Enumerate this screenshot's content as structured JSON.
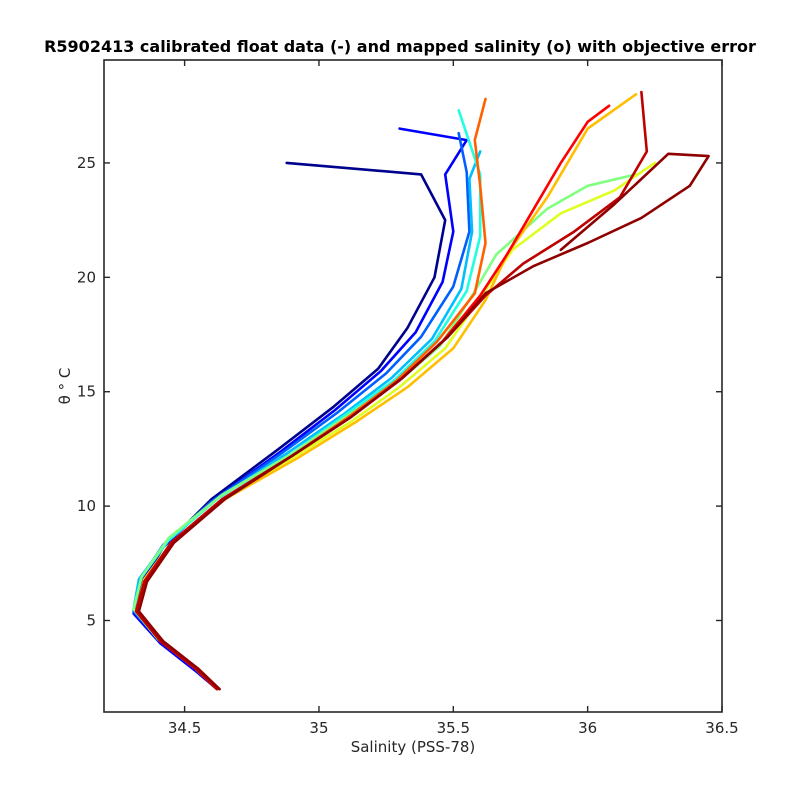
{
  "chart_data": {
    "type": "line",
    "title": "R5902413 calibrated float data (-) and mapped salinity (o) with objective error",
    "xlabel": "Salinity (PSS-78)",
    "ylabel": "θ ° C",
    "xlim": [
      34.2,
      36.5
    ],
    "ylim": [
      1.0,
      29.5
    ],
    "xticks": [
      34.5,
      35,
      35.5,
      36,
      36.5
    ],
    "yticks": [
      5,
      10,
      15,
      20,
      25
    ],
    "grid": false,
    "legend": "none",
    "colormap": "jet",
    "profile_colors": [
      "#00008f",
      "#0000ff",
      "#0060ff",
      "#00bfff",
      "#20ffdf",
      "#80ff80",
      "#dfff20",
      "#ffbf00",
      "#ff6000",
      "#ff0000",
      "#bf0000",
      "#8f0000"
    ],
    "series": [
      {
        "color": "#00008f",
        "values": [
          [
            34.63,
            2.0
          ],
          [
            34.55,
            2.8
          ],
          [
            34.42,
            4.0
          ],
          [
            34.32,
            5.3
          ],
          [
            34.34,
            6.6
          ],
          [
            34.42,
            8.2
          ],
          [
            34.6,
            10.3
          ],
          [
            34.85,
            12.5
          ],
          [
            35.05,
            14.3
          ],
          [
            35.22,
            16.0
          ],
          [
            35.33,
            17.8
          ],
          [
            35.43,
            20.0
          ],
          [
            35.47,
            22.5
          ],
          [
            35.38,
            24.5
          ],
          [
            34.88,
            25.0
          ]
        ]
      },
      {
        "color": "#0000ff",
        "values": [
          [
            34.62,
            2.0
          ],
          [
            34.54,
            2.8
          ],
          [
            34.41,
            4.0
          ],
          [
            34.31,
            5.3
          ],
          [
            34.33,
            6.6
          ],
          [
            34.42,
            8.2
          ],
          [
            34.6,
            10.2
          ],
          [
            34.86,
            12.4
          ],
          [
            35.06,
            14.2
          ],
          [
            35.23,
            15.9
          ],
          [
            35.36,
            17.6
          ],
          [
            35.46,
            19.8
          ],
          [
            35.5,
            22.0
          ],
          [
            35.47,
            24.5
          ],
          [
            35.55,
            26.0
          ],
          [
            35.3,
            26.5
          ]
        ]
      },
      {
        "color": "#0060ff",
        "values": [
          [
            34.62,
            2.0
          ],
          [
            34.54,
            2.9
          ],
          [
            34.41,
            4.1
          ],
          [
            34.31,
            5.4
          ],
          [
            34.33,
            6.7
          ],
          [
            34.42,
            8.3
          ],
          [
            34.6,
            10.2
          ],
          [
            34.86,
            12.3
          ],
          [
            35.07,
            14.1
          ],
          [
            35.25,
            15.8
          ],
          [
            35.38,
            17.4
          ],
          [
            35.5,
            19.6
          ],
          [
            35.56,
            22.0
          ],
          [
            35.55,
            24.6
          ],
          [
            35.52,
            26.3
          ]
        ]
      },
      {
        "color": "#00bfff",
        "values": [
          [
            34.62,
            2.0
          ],
          [
            34.54,
            2.9
          ],
          [
            34.4,
            4.2
          ],
          [
            34.31,
            5.5
          ],
          [
            34.33,
            6.8
          ],
          [
            34.43,
            8.4
          ],
          [
            34.62,
            10.3
          ],
          [
            34.88,
            12.3
          ],
          [
            35.09,
            14.0
          ],
          [
            35.27,
            15.6
          ],
          [
            35.42,
            17.3
          ],
          [
            35.53,
            19.5
          ],
          [
            35.57,
            22.0
          ],
          [
            35.56,
            24.3
          ],
          [
            35.6,
            25.5
          ]
        ]
      },
      {
        "color": "#20ffdf",
        "values": [
          [
            34.62,
            2.0
          ],
          [
            34.54,
            2.9
          ],
          [
            34.4,
            4.2
          ],
          [
            34.31,
            5.5
          ],
          [
            34.34,
            6.9
          ],
          [
            34.44,
            8.5
          ],
          [
            34.63,
            10.4
          ],
          [
            34.9,
            12.3
          ],
          [
            35.1,
            14.0
          ],
          [
            35.28,
            15.5
          ],
          [
            35.43,
            17.2
          ],
          [
            35.55,
            19.4
          ],
          [
            35.6,
            21.8
          ],
          [
            35.6,
            24.5
          ],
          [
            35.52,
            27.3
          ]
        ]
      },
      {
        "color": "#80ff80",
        "values": [
          [
            34.62,
            2.0
          ],
          [
            34.54,
            2.9
          ],
          [
            34.4,
            4.2
          ],
          [
            34.31,
            5.5
          ],
          [
            34.34,
            6.9
          ],
          [
            34.44,
            8.6
          ],
          [
            34.64,
            10.5
          ],
          [
            34.9,
            12.3
          ],
          [
            35.1,
            13.9
          ],
          [
            35.29,
            15.4
          ],
          [
            35.45,
            17.0
          ],
          [
            35.57,
            19.2
          ],
          [
            35.66,
            21.0
          ],
          [
            35.85,
            23.0
          ],
          [
            36.0,
            24.0
          ],
          [
            36.18,
            24.5
          ]
        ]
      },
      {
        "color": "#dfff20",
        "values": [
          [
            34.62,
            2.0
          ],
          [
            34.54,
            2.9
          ],
          [
            34.41,
            4.1
          ],
          [
            34.32,
            5.4
          ],
          [
            34.35,
            6.8
          ],
          [
            34.45,
            8.4
          ],
          [
            34.63,
            10.2
          ],
          [
            34.9,
            12.1
          ],
          [
            35.12,
            13.7
          ],
          [
            35.3,
            15.2
          ],
          [
            35.47,
            16.9
          ],
          [
            35.6,
            19.1
          ],
          [
            35.72,
            21.2
          ],
          [
            35.9,
            22.8
          ],
          [
            36.1,
            23.8
          ],
          [
            36.25,
            25.0
          ]
        ]
      },
      {
        "color": "#ffbf00",
        "values": [
          [
            34.62,
            2.0
          ],
          [
            34.54,
            2.9
          ],
          [
            34.41,
            4.1
          ],
          [
            34.32,
            5.4
          ],
          [
            34.35,
            6.8
          ],
          [
            34.46,
            8.5
          ],
          [
            34.65,
            10.3
          ],
          [
            34.92,
            12.1
          ],
          [
            35.14,
            13.7
          ],
          [
            35.33,
            15.2
          ],
          [
            35.5,
            16.9
          ],
          [
            35.62,
            19.0
          ],
          [
            35.7,
            21.0
          ],
          [
            35.85,
            23.5
          ],
          [
            36.0,
            26.5
          ],
          [
            36.18,
            28.0
          ]
        ]
      },
      {
        "color": "#ff6000",
        "values": [
          [
            34.62,
            2.0
          ],
          [
            34.54,
            2.9
          ],
          [
            34.41,
            4.1
          ],
          [
            34.32,
            5.4
          ],
          [
            34.35,
            6.7
          ],
          [
            34.45,
            8.4
          ],
          [
            34.64,
            10.3
          ],
          [
            34.9,
            12.2
          ],
          [
            35.11,
            13.9
          ],
          [
            35.29,
            15.5
          ],
          [
            35.44,
            17.2
          ],
          [
            35.58,
            19.3
          ],
          [
            35.62,
            21.5
          ],
          [
            35.6,
            24.0
          ],
          [
            35.58,
            26.0
          ],
          [
            35.62,
            27.8
          ]
        ]
      },
      {
        "color": "#ff0000",
        "values": [
          [
            34.62,
            2.0
          ],
          [
            34.54,
            2.9
          ],
          [
            34.41,
            4.1
          ],
          [
            34.32,
            5.4
          ],
          [
            34.35,
            6.7
          ],
          [
            34.45,
            8.4
          ],
          [
            34.64,
            10.3
          ],
          [
            34.9,
            12.2
          ],
          [
            35.12,
            13.9
          ],
          [
            35.3,
            15.5
          ],
          [
            35.46,
            17.2
          ],
          [
            35.6,
            19.2
          ],
          [
            35.7,
            21.0
          ],
          [
            35.8,
            23.0
          ],
          [
            35.9,
            25.0
          ],
          [
            36.0,
            26.8
          ],
          [
            36.08,
            27.5
          ]
        ]
      },
      {
        "color": "#bf0000",
        "values": [
          [
            34.62,
            2.0
          ],
          [
            34.54,
            2.9
          ],
          [
            34.41,
            4.1
          ],
          [
            34.32,
            5.4
          ],
          [
            34.35,
            6.7
          ],
          [
            34.45,
            8.4
          ],
          [
            34.64,
            10.3
          ],
          [
            34.9,
            12.2
          ],
          [
            35.12,
            13.9
          ],
          [
            35.31,
            15.6
          ],
          [
            35.48,
            17.4
          ],
          [
            35.62,
            19.2
          ],
          [
            35.76,
            20.6
          ],
          [
            35.95,
            22.0
          ],
          [
            36.12,
            23.5
          ],
          [
            36.22,
            25.5
          ],
          [
            36.2,
            28.1
          ]
        ]
      },
      {
        "color": "#8f0000",
        "values": [
          [
            34.63,
            2.0
          ],
          [
            34.55,
            2.9
          ],
          [
            34.42,
            4.1
          ],
          [
            34.33,
            5.4
          ],
          [
            34.36,
            6.7
          ],
          [
            34.46,
            8.4
          ],
          [
            34.65,
            10.3
          ],
          [
            34.9,
            12.2
          ],
          [
            35.12,
            13.9
          ],
          [
            35.31,
            15.6
          ],
          [
            35.48,
            17.4
          ],
          [
            35.62,
            19.3
          ],
          [
            35.8,
            20.5
          ],
          [
            36.0,
            21.5
          ],
          [
            36.2,
            22.6
          ],
          [
            36.38,
            24.0
          ],
          [
            36.45,
            25.3
          ],
          [
            36.3,
            25.4
          ],
          [
            36.1,
            23.2
          ],
          [
            35.9,
            21.2
          ]
        ]
      }
    ]
  }
}
